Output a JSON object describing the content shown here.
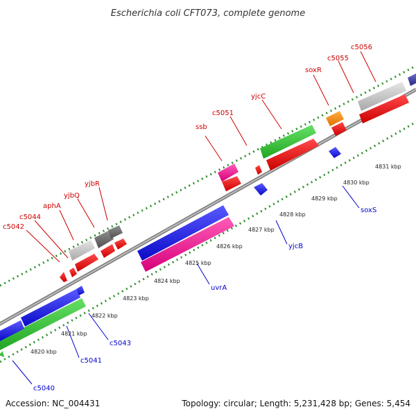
{
  "title": "Escherichia coli CFT073, complete genome",
  "footer": {
    "accession": "Accession: NC_004431",
    "summary": "Topology: circular; Length: 5,231,428 bp; Genes: 5,454"
  },
  "colors": {
    "backbone": "#8c8c8c",
    "tick_outer": "#2f8f2f",
    "tick_inner": "#2f8f2f",
    "label_forward": "#cc0000",
    "label_reverse": "#0000cc",
    "blue": "#1a1ae6",
    "green": "#33cc33",
    "pink": "#ff1a99",
    "red": "#ff0d0d",
    "grey_light": "#c8c8c8",
    "grey_dark": "#707070",
    "orange": "#ff8c00",
    "navy": "#3b3b99"
  },
  "ticks": [
    "4820 kbp",
    "4821 kbp",
    "4822 kbp",
    "4823 kbp",
    "4824 kbp",
    "4825 kbp",
    "4826 kbp",
    "4827 kbp",
    "4828 kbp",
    "4829 kbp",
    "4830 kbp",
    "4831 kbp"
  ],
  "forward_labels": [
    "c5042",
    "c5044",
    "aphA",
    "yjbQ",
    "yjbR",
    "ssb",
    "c5051",
    "yjcC",
    "soxR",
    "c5055",
    "c5056"
  ],
  "reverse_labels": [
    "c5040",
    "c5041",
    "c5043",
    "uvrA",
    "yjcB",
    "soxS"
  ]
}
